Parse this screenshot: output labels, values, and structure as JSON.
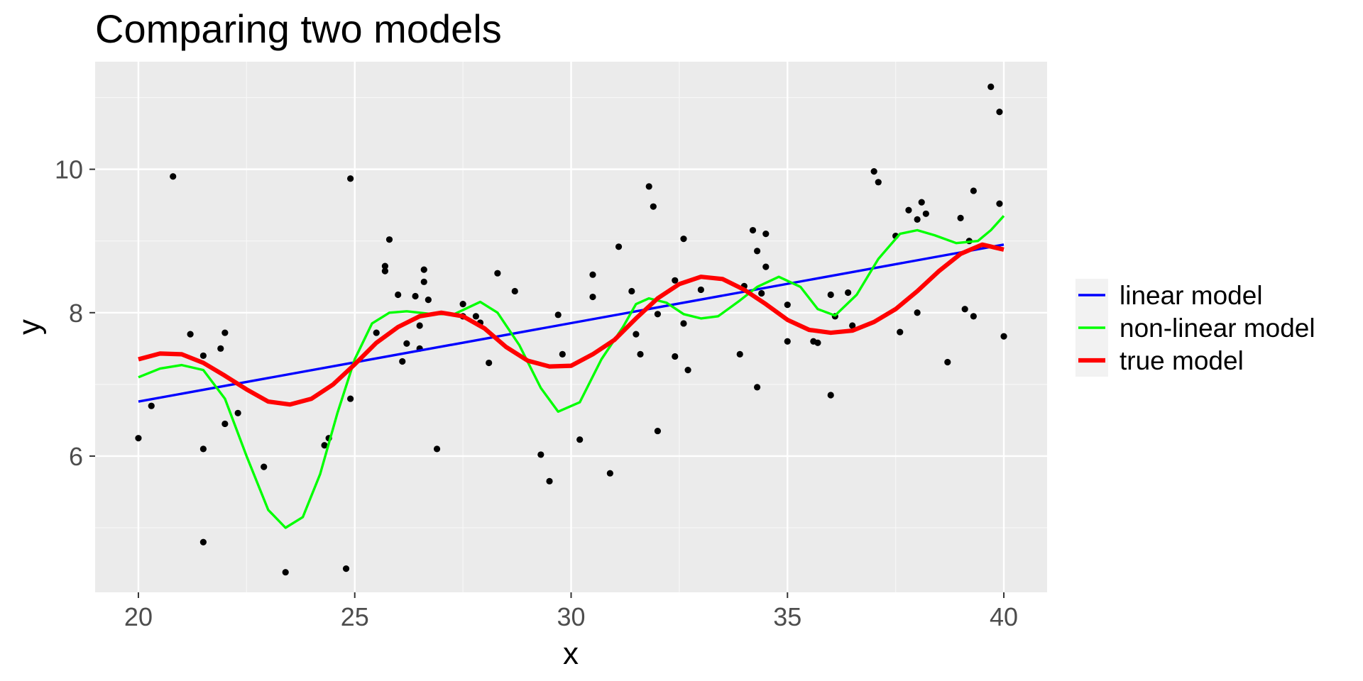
{
  "chart_data": {
    "type": "scatter",
    "title": "Comparing two models",
    "xlabel": "x",
    "ylabel": "y",
    "xlim": [
      19,
      41
    ],
    "ylim": [
      4.1,
      11.5
    ],
    "x_ticks": [
      20,
      25,
      30,
      35,
      40
    ],
    "y_ticks": [
      6,
      8,
      10
    ],
    "x_minor": [
      22.5,
      27.5,
      32.5,
      37.5
    ],
    "y_minor": [
      5,
      7,
      9,
      11
    ],
    "grid": true,
    "legend_position": "right",
    "points": [
      [
        20.0,
        6.25
      ],
      [
        20.3,
        6.7
      ],
      [
        20.8,
        9.9
      ],
      [
        21.2,
        7.7
      ],
      [
        21.5,
        7.4
      ],
      [
        21.5,
        4.8
      ],
      [
        21.5,
        6.1
      ],
      [
        21.9,
        7.5
      ],
      [
        22.0,
        6.45
      ],
      [
        22.0,
        7.72
      ],
      [
        22.3,
        6.6
      ],
      [
        22.9,
        5.85
      ],
      [
        23.4,
        4.38
      ],
      [
        24.3,
        6.15
      ],
      [
        24.4,
        6.25
      ],
      [
        24.8,
        4.43
      ],
      [
        24.9,
        6.8
      ],
      [
        24.9,
        9.87
      ],
      [
        25.5,
        7.72
      ],
      [
        25.7,
        8.65
      ],
      [
        25.7,
        8.58
      ],
      [
        25.8,
        9.02
      ],
      [
        26.0,
        8.25
      ],
      [
        26.1,
        7.32
      ],
      [
        26.2,
        7.57
      ],
      [
        26.4,
        8.23
      ],
      [
        26.5,
        7.82
      ],
      [
        26.5,
        7.5
      ],
      [
        26.6,
        8.6
      ],
      [
        26.6,
        8.43
      ],
      [
        26.7,
        8.18
      ],
      [
        26.9,
        6.1
      ],
      [
        27.5,
        8.12
      ],
      [
        27.5,
        7.95
      ],
      [
        27.8,
        7.95
      ],
      [
        27.9,
        7.86
      ],
      [
        28.1,
        7.3
      ],
      [
        28.3,
        8.55
      ],
      [
        28.7,
        8.3
      ],
      [
        29.3,
        6.02
      ],
      [
        29.5,
        5.65
      ],
      [
        29.7,
        7.97
      ],
      [
        29.8,
        7.42
      ],
      [
        30.2,
        6.23
      ],
      [
        30.5,
        8.53
      ],
      [
        30.5,
        8.22
      ],
      [
        30.9,
        5.76
      ],
      [
        31.1,
        8.92
      ],
      [
        31.4,
        8.3
      ],
      [
        31.5,
        7.7
      ],
      [
        31.6,
        7.42
      ],
      [
        31.8,
        9.76
      ],
      [
        31.9,
        9.48
      ],
      [
        32.0,
        7.98
      ],
      [
        32.0,
        6.35
      ],
      [
        32.4,
        8.45
      ],
      [
        32.4,
        7.39
      ],
      [
        32.6,
        7.85
      ],
      [
        32.6,
        9.03
      ],
      [
        32.7,
        7.2
      ],
      [
        33.0,
        8.32
      ],
      [
        33.9,
        7.42
      ],
      [
        34.0,
        8.37
      ],
      [
        34.2,
        9.15
      ],
      [
        34.3,
        8.86
      ],
      [
        34.3,
        6.96
      ],
      [
        34.4,
        8.27
      ],
      [
        34.5,
        9.1
      ],
      [
        34.5,
        8.64
      ],
      [
        35.0,
        8.11
      ],
      [
        35.0,
        7.6
      ],
      [
        35.6,
        7.6
      ],
      [
        35.7,
        7.58
      ],
      [
        36.0,
        8.25
      ],
      [
        36.0,
        6.85
      ],
      [
        36.1,
        7.95
      ],
      [
        36.4,
        8.28
      ],
      [
        36.5,
        7.82
      ],
      [
        37.0,
        9.97
      ],
      [
        37.1,
        9.82
      ],
      [
        37.5,
        9.07
      ],
      [
        37.6,
        7.73
      ],
      [
        37.8,
        9.43
      ],
      [
        38.0,
        9.3
      ],
      [
        38.0,
        8.0
      ],
      [
        38.1,
        9.54
      ],
      [
        38.2,
        9.38
      ],
      [
        38.7,
        7.31
      ],
      [
        39.0,
        9.32
      ],
      [
        39.1,
        8.05
      ],
      [
        39.2,
        9.0
      ],
      [
        39.3,
        9.7
      ],
      [
        39.3,
        7.95
      ],
      [
        39.7,
        11.15
      ],
      [
        39.9,
        10.8
      ],
      [
        39.9,
        9.52
      ],
      [
        40.0,
        7.67
      ]
    ],
    "series": [
      {
        "name": "linear model",
        "color": "#0000ff",
        "points": [
          [
            20,
            6.76
          ],
          [
            40,
            8.95
          ]
        ]
      },
      {
        "name": "non-linear model",
        "color": "#00ff00",
        "points": [
          [
            20.0,
            7.1
          ],
          [
            20.5,
            7.22
          ],
          [
            21.0,
            7.27
          ],
          [
            21.5,
            7.2
          ],
          [
            22.0,
            6.8
          ],
          [
            22.5,
            6.0
          ],
          [
            23.0,
            5.25
          ],
          [
            23.4,
            5.0
          ],
          [
            23.8,
            5.15
          ],
          [
            24.2,
            5.75
          ],
          [
            24.6,
            6.6
          ],
          [
            25.0,
            7.35
          ],
          [
            25.4,
            7.85
          ],
          [
            25.8,
            8.0
          ],
          [
            26.2,
            8.02
          ],
          [
            26.8,
            7.98
          ],
          [
            27.3,
            7.98
          ],
          [
            27.9,
            8.15
          ],
          [
            28.3,
            8.0
          ],
          [
            28.8,
            7.55
          ],
          [
            29.3,
            6.95
          ],
          [
            29.7,
            6.62
          ],
          [
            30.2,
            6.75
          ],
          [
            30.7,
            7.35
          ],
          [
            31.2,
            7.8
          ],
          [
            31.5,
            8.12
          ],
          [
            31.8,
            8.2
          ],
          [
            32.2,
            8.14
          ],
          [
            32.6,
            7.98
          ],
          [
            33.0,
            7.92
          ],
          [
            33.4,
            7.95
          ],
          [
            33.9,
            8.17
          ],
          [
            34.3,
            8.36
          ],
          [
            34.8,
            8.5
          ],
          [
            35.3,
            8.36
          ],
          [
            35.7,
            8.05
          ],
          [
            36.1,
            7.96
          ],
          [
            36.6,
            8.25
          ],
          [
            37.1,
            8.75
          ],
          [
            37.6,
            9.1
          ],
          [
            38.0,
            9.15
          ],
          [
            38.4,
            9.08
          ],
          [
            38.9,
            8.97
          ],
          [
            39.4,
            9.0
          ],
          [
            39.7,
            9.15
          ],
          [
            40.0,
            9.35
          ]
        ]
      },
      {
        "name": "true model",
        "color": "#ff0000",
        "points": [
          [
            20.0,
            7.35
          ],
          [
            20.5,
            7.43
          ],
          [
            21.0,
            7.42
          ],
          [
            21.5,
            7.3
          ],
          [
            22.0,
            7.12
          ],
          [
            22.5,
            6.93
          ],
          [
            23.0,
            6.76
          ],
          [
            23.5,
            6.72
          ],
          [
            24.0,
            6.8
          ],
          [
            24.5,
            7.0
          ],
          [
            25.0,
            7.28
          ],
          [
            25.5,
            7.58
          ],
          [
            26.0,
            7.8
          ],
          [
            26.5,
            7.95
          ],
          [
            27.0,
            8.0
          ],
          [
            27.5,
            7.95
          ],
          [
            28.0,
            7.78
          ],
          [
            28.5,
            7.52
          ],
          [
            29.0,
            7.33
          ],
          [
            29.5,
            7.25
          ],
          [
            30.0,
            7.26
          ],
          [
            30.5,
            7.42
          ],
          [
            31.0,
            7.62
          ],
          [
            31.5,
            7.92
          ],
          [
            32.0,
            8.2
          ],
          [
            32.5,
            8.4
          ],
          [
            33.0,
            8.5
          ],
          [
            33.5,
            8.47
          ],
          [
            34.0,
            8.32
          ],
          [
            34.5,
            8.12
          ],
          [
            35.0,
            7.9
          ],
          [
            35.5,
            7.76
          ],
          [
            36.0,
            7.72
          ],
          [
            36.5,
            7.75
          ],
          [
            37.0,
            7.87
          ],
          [
            37.5,
            8.05
          ],
          [
            38.0,
            8.3
          ],
          [
            38.5,
            8.58
          ],
          [
            39.0,
            8.82
          ],
          [
            39.5,
            8.95
          ],
          [
            40.0,
            8.88
          ]
        ]
      }
    ]
  }
}
